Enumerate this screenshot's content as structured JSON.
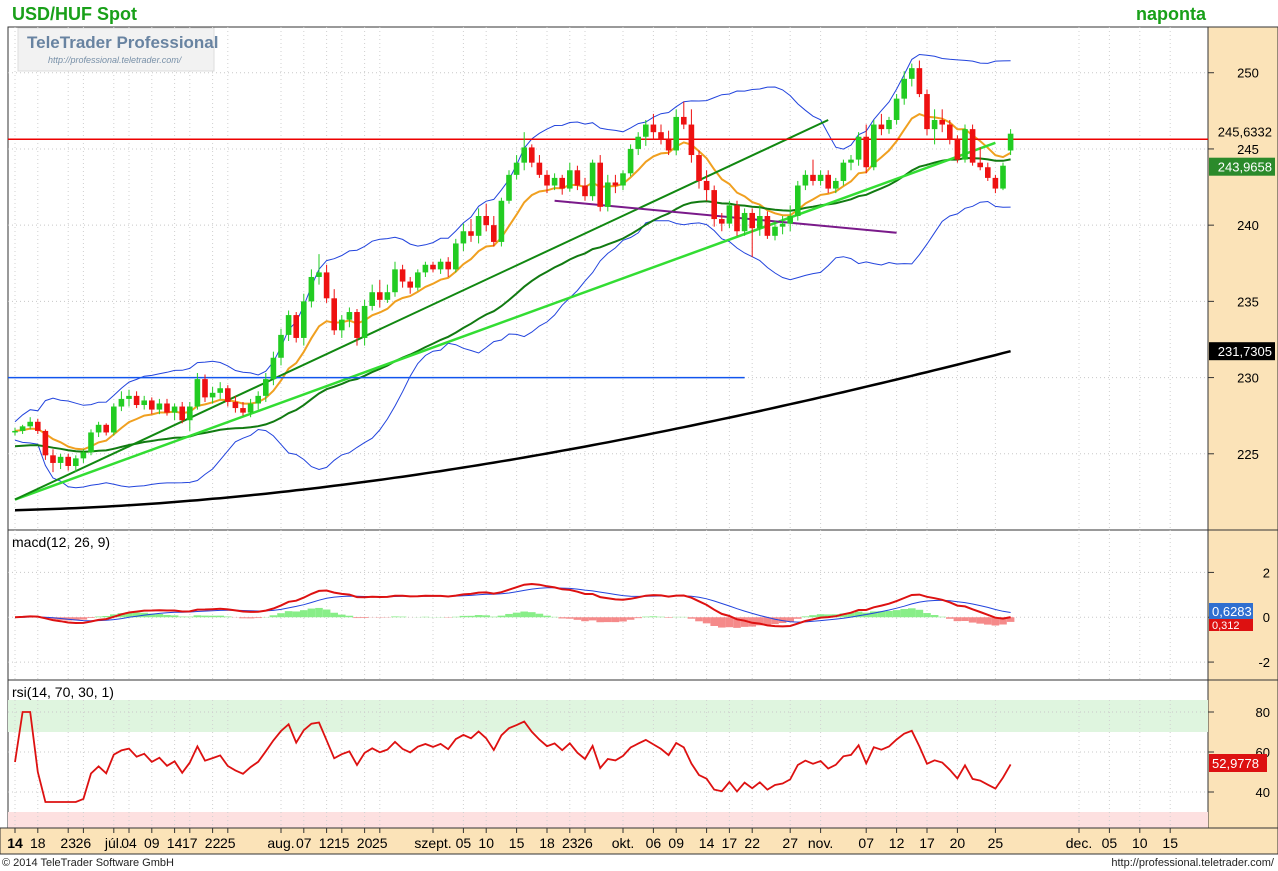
{
  "header": {
    "symbol": "USD/HUF Spot",
    "period": "naponta"
  },
  "watermark": {
    "brand": "TeleTrader Professional",
    "url": "http://professional.teletrader.com/"
  },
  "footer": {
    "copyright": "© 2014 TeleTrader Software GmbH",
    "url": "http://professional.teletrader.com/"
  },
  "colors": {
    "up": "#22cc22",
    "down": "#ee1111",
    "axis_bg": "#fbe3b8",
    "black_ma": "#000000",
    "dark_green_ma": "#117a11",
    "orange_ma": "#f0a020",
    "bollinger": "#2244dd",
    "trend_light": "#33dd33",
    "trend_dark": "#118811",
    "trend_purple": "#7a1a8a",
    "level_red": "#ee0000",
    "level_blue": "#1155ee"
  },
  "chart_data": [
    {
      "type": "candlestick",
      "title": "USD/HUF Spot",
      "ylim": [
        220,
        253
      ],
      "y_ticks": [
        225,
        230,
        235,
        240,
        245,
        250
      ],
      "x_tick_labels": [
        "14",
        "18",
        "23",
        "26",
        "júl.",
        "04",
        "09",
        "14",
        "17",
        "22",
        "25",
        "aug.",
        "07",
        "12",
        "15",
        "20",
        "25",
        "szept.",
        "05",
        "10",
        "15",
        "18",
        "23",
        "26",
        "okt.",
        "06",
        "09",
        "14",
        "17",
        "22",
        "27",
        "nov.",
        "07",
        "12",
        "17",
        "20",
        "25",
        "dec.",
        "05",
        "10",
        "15"
      ],
      "candles": [
        [
          226.4,
          226.7,
          226.2,
          226.5
        ],
        [
          226.5,
          226.9,
          226.3,
          226.8
        ],
        [
          226.8,
          227.4,
          226.6,
          227.1
        ],
        [
          227.1,
          227.3,
          226.3,
          226.5
        ],
        [
          226.5,
          226.6,
          224.6,
          224.9
        ],
        [
          224.9,
          225.3,
          223.8,
          224.4
        ],
        [
          224.4,
          225.0,
          224.0,
          224.8
        ],
        [
          224.8,
          225.0,
          223.9,
          224.2
        ],
        [
          224.2,
          224.9,
          223.8,
          224.7
        ],
        [
          224.7,
          225.3,
          224.4,
          225.1
        ],
        [
          225.1,
          226.6,
          224.9,
          226.4
        ],
        [
          226.4,
          227.1,
          226.1,
          226.9
        ],
        [
          226.9,
          227.0,
          226.2,
          226.4
        ],
        [
          226.4,
          228.3,
          226.2,
          228.1
        ],
        [
          228.1,
          229.1,
          227.8,
          228.6
        ],
        [
          228.6,
          229.2,
          228.1,
          228.8
        ],
        [
          228.8,
          229.1,
          228.0,
          228.2
        ],
        [
          228.2,
          228.8,
          227.9,
          228.5
        ],
        [
          228.5,
          228.7,
          227.6,
          227.9
        ],
        [
          227.9,
          228.6,
          227.6,
          228.3
        ],
        [
          228.3,
          228.6,
          227.5,
          227.7
        ],
        [
          227.7,
          228.3,
          227.2,
          228.1
        ],
        [
          228.1,
          228.4,
          227.0,
          227.2
        ],
        [
          227.2,
          228.4,
          226.5,
          228.1
        ],
        [
          228.1,
          230.3,
          227.9,
          229.9
        ],
        [
          229.9,
          230.2,
          228.4,
          228.7
        ],
        [
          228.7,
          229.4,
          228.3,
          229.0
        ],
        [
          229.0,
          229.7,
          228.6,
          229.3
        ],
        [
          229.3,
          229.5,
          228.1,
          228.4
        ],
        [
          228.4,
          228.8,
          227.7,
          228.0
        ],
        [
          228.0,
          228.4,
          227.5,
          227.7
        ],
        [
          227.7,
          228.6,
          227.4,
          228.3
        ],
        [
          228.3,
          229.1,
          227.9,
          228.8
        ],
        [
          228.8,
          230.3,
          228.4,
          229.9
        ],
        [
          229.9,
          231.7,
          229.5,
          231.3
        ],
        [
          231.3,
          233.2,
          230.8,
          232.8
        ],
        [
          232.8,
          234.4,
          232.4,
          234.1
        ],
        [
          234.1,
          234.3,
          232.3,
          232.6
        ],
        [
          232.6,
          235.5,
          232.1,
          235.0
        ],
        [
          235.0,
          237.1,
          234.6,
          236.6
        ],
        [
          236.6,
          238.1,
          236.1,
          236.9
        ],
        [
          236.9,
          237.4,
          234.9,
          235.2
        ],
        [
          235.2,
          235.8,
          232.8,
          233.1
        ],
        [
          233.1,
          234.1,
          232.6,
          233.8
        ],
        [
          233.8,
          234.6,
          233.3,
          234.3
        ],
        [
          234.3,
          234.5,
          232.1,
          232.6
        ],
        [
          232.6,
          235.1,
          232.1,
          234.7
        ],
        [
          234.7,
          236.1,
          234.4,
          235.6
        ],
        [
          235.6,
          236.4,
          234.6,
          235.1
        ],
        [
          235.1,
          236.1,
          234.9,
          235.6
        ],
        [
          235.6,
          237.6,
          235.3,
          237.1
        ],
        [
          237.1,
          237.4,
          235.9,
          236.3
        ],
        [
          236.3,
          236.6,
          235.5,
          235.9
        ],
        [
          235.9,
          237.1,
          235.7,
          236.9
        ],
        [
          236.9,
          237.6,
          236.6,
          237.4
        ],
        [
          237.4,
          237.6,
          236.9,
          237.1
        ],
        [
          237.1,
          237.8,
          236.8,
          237.6
        ],
        [
          237.6,
          237.9,
          236.6,
          237.1
        ],
        [
          237.1,
          239.1,
          236.9,
          238.8
        ],
        [
          238.8,
          240.1,
          238.3,
          239.6
        ],
        [
          239.6,
          240.4,
          238.9,
          239.3
        ],
        [
          239.3,
          241.1,
          238.8,
          240.6
        ],
        [
          240.6,
          241.4,
          239.6,
          240.0
        ],
        [
          240.0,
          240.6,
          238.6,
          238.9
        ],
        [
          238.9,
          241.8,
          238.6,
          241.6
        ],
        [
          241.6,
          243.6,
          241.4,
          243.3
        ],
        [
          243.3,
          244.6,
          243.0,
          244.1
        ],
        [
          244.1,
          246.1,
          243.6,
          245.1
        ],
        [
          245.1,
          245.3,
          243.8,
          244.1
        ],
        [
          244.1,
          244.6,
          243.1,
          243.3
        ],
        [
          243.3,
          243.6,
          242.1,
          242.6
        ],
        [
          242.6,
          243.4,
          242.3,
          243.1
        ],
        [
          243.1,
          243.3,
          242.0,
          242.4
        ],
        [
          242.4,
          244.1,
          242.2,
          243.6
        ],
        [
          243.6,
          243.9,
          242.3,
          242.6
        ],
        [
          242.6,
          243.1,
          241.6,
          241.9
        ],
        [
          241.9,
          244.3,
          241.6,
          244.1
        ],
        [
          244.1,
          244.6,
          240.9,
          241.2
        ],
        [
          241.2,
          243.3,
          240.9,
          242.8
        ],
        [
          242.8,
          243.3,
          242.1,
          242.6
        ],
        [
          242.6,
          243.6,
          242.3,
          243.4
        ],
        [
          243.4,
          245.3,
          243.2,
          245.0
        ],
        [
          245.0,
          246.1,
          244.6,
          245.8
        ],
        [
          245.8,
          246.9,
          245.2,
          246.6
        ],
        [
          246.6,
          247.3,
          245.6,
          246.1
        ],
        [
          246.1,
          246.6,
          245.3,
          245.6
        ],
        [
          245.6,
          246.2,
          244.6,
          244.9
        ],
        [
          244.9,
          247.6,
          244.6,
          247.1
        ],
        [
          247.1,
          248.1,
          246.3,
          246.6
        ],
        [
          246.6,
          247.6,
          244.1,
          244.6
        ],
        [
          244.6,
          244.9,
          242.4,
          242.9
        ],
        [
          242.9,
          243.6,
          241.6,
          242.3
        ],
        [
          242.3,
          242.6,
          239.9,
          240.4
        ],
        [
          240.4,
          240.8,
          239.6,
          240.1
        ],
        [
          240.1,
          241.6,
          239.8,
          241.3
        ],
        [
          241.3,
          241.6,
          239.3,
          239.6
        ],
        [
          239.6,
          241.1,
          239.3,
          240.8
        ],
        [
          240.8,
          241.1,
          237.9,
          239.8
        ],
        [
          239.8,
          241.3,
          239.3,
          240.6
        ],
        [
          240.6,
          240.9,
          239.1,
          239.3
        ],
        [
          239.3,
          240.3,
          239.0,
          239.9
        ],
        [
          239.9,
          240.6,
          239.4,
          240.1
        ],
        [
          240.1,
          241.3,
          239.6,
          240.6
        ],
        [
          240.6,
          242.9,
          240.3,
          242.6
        ],
        [
          242.6,
          243.6,
          242.3,
          243.3
        ],
        [
          243.3,
          244.3,
          242.6,
          242.9
        ],
        [
          242.9,
          243.6,
          242.6,
          243.3
        ],
        [
          243.3,
          243.6,
          242.1,
          242.4
        ],
        [
          242.4,
          243.1,
          242.1,
          242.9
        ],
        [
          242.9,
          244.3,
          242.6,
          244.1
        ],
        [
          244.1,
          244.6,
          243.6,
          244.3
        ],
        [
          244.3,
          246.1,
          243.9,
          245.8
        ],
        [
          245.8,
          246.6,
          243.4,
          243.8
        ],
        [
          243.8,
          246.9,
          243.6,
          246.6
        ],
        [
          246.6,
          247.3,
          245.9,
          246.3
        ],
        [
          246.3,
          247.1,
          246.0,
          246.9
        ],
        [
          246.9,
          248.6,
          246.6,
          248.3
        ],
        [
          248.3,
          250.1,
          247.9,
          249.6
        ],
        [
          249.6,
          250.6,
          249.1,
          250.3
        ],
        [
          250.3,
          250.8,
          248.4,
          248.6
        ],
        [
          248.6,
          248.9,
          245.9,
          246.3
        ],
        [
          246.3,
          247.6,
          245.3,
          246.9
        ],
        [
          246.9,
          247.6,
          246.1,
          246.6
        ],
        [
          246.6,
          246.9,
          245.3,
          245.6
        ],
        [
          245.6,
          245.9,
          244.1,
          244.3
        ],
        [
          244.3,
          246.6,
          244.1,
          246.3
        ],
        [
          246.3,
          246.6,
          243.9,
          244.1
        ],
        [
          244.1,
          245.1,
          243.6,
          243.8
        ],
        [
          243.8,
          244.1,
          242.9,
          243.1
        ],
        [
          243.1,
          243.3,
          242.1,
          242.4
        ],
        [
          242.4,
          244.1,
          242.3,
          243.9
        ],
        [
          244.9,
          246.3,
          244.6,
          246.0
        ]
      ],
      "moving_averages": {
        "ma_black_last": 231.7305,
        "ma_green_last": 243.9658
      },
      "horizontal_levels": [
        245.6332,
        230.0
      ],
      "labels": {
        "last_price": "245,6332",
        "ma_green": "243,9658",
        "ma_black": "231,7305"
      }
    },
    {
      "type": "line",
      "title": "macd(12, 26, 9)",
      "ylim": [
        -2.8,
        3.0
      ],
      "y_ticks": [
        2,
        0,
        -2
      ],
      "labels": {
        "signal_last": "0,6283",
        "macd_last": "0,312"
      }
    },
    {
      "type": "line",
      "title": "rsi(14, 70, 30, 1)",
      "ylim": [
        22,
        86
      ],
      "y_ticks": [
        80,
        60,
        40
      ],
      "bands": [
        70,
        30
      ],
      "labels": {
        "rsi_last": "52,9778"
      }
    }
  ]
}
